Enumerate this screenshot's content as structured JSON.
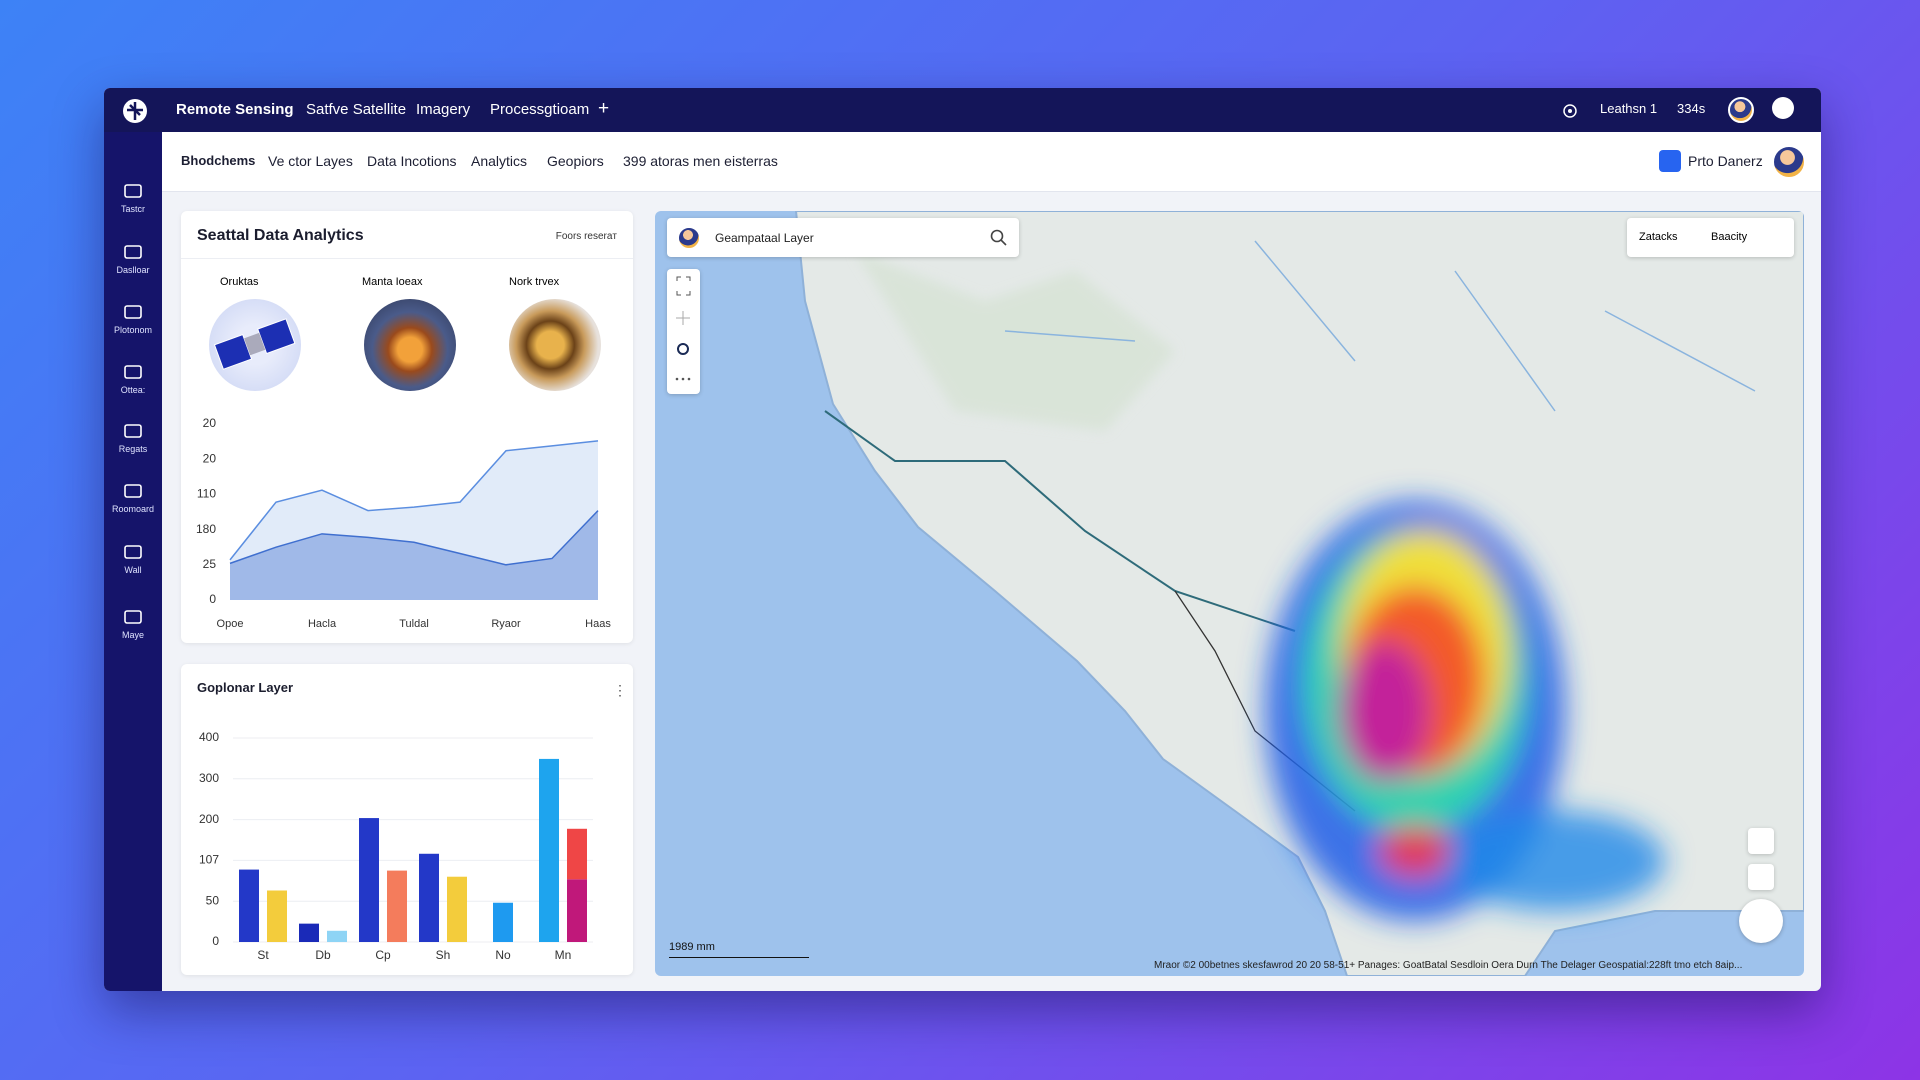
{
  "topbar": {
    "title": "Remote Sensing",
    "tabs": [
      "Satfve Satellite",
      "Imagery",
      "Processgtioam"
    ],
    "add": "+",
    "user": "Leathsn 1",
    "meta": "334s"
  },
  "toolbar": {
    "tabs": [
      "Bhodchems",
      "Ve ctor Layes",
      "Data Incotions",
      "Analytics",
      "Geopiors",
      "399 atoras men eisterras"
    ],
    "user": "Prto Danerz"
  },
  "sidebar": {
    "items": [
      "Tastcr",
      "Daslloar",
      "Plotonom",
      "Ottea:",
      "Regats",
      "Roomoard",
      "Wall",
      "Maye"
    ]
  },
  "analytics_panel": {
    "title": "Seattal Data Analytics",
    "action": "Foors reseraт",
    "thumbnails": [
      "Oruktas",
      "Manta Ioeax",
      "Nork trvex"
    ]
  },
  "bar_panel": {
    "title": "Goplonar Layer"
  },
  "map": {
    "search": "Geampataal Layer",
    "buttons": [
      "Zatacks",
      "Baacity"
    ],
    "scale": "1989 mm",
    "attribution": "Mraor ©2 00betnes skesfawrod 20 20 58-51+ Panages: GoatBatal Sesdloin Oera Durn The Delager Geospatial:228ft tmo etch 8aip..."
  },
  "chart_data": [
    {
      "type": "area",
      "categories": [
        "Opoe",
        null,
        "Hacla",
        null,
        "Tuldal",
        null,
        "Ryaor",
        null,
        "Haas"
      ],
      "series": [
        {
          "color": "#5b8ee0",
          "values": [
            57,
            139,
            156,
            127,
            132,
            139,
            212,
            219,
            226
          ]
        },
        {
          "color": "#3f6fcf",
          "values": [
            52,
            75,
            94,
            89,
            82,
            66,
            50,
            59,
            127
          ]
        }
      ],
      "ylim": [
        0,
        250
      ],
      "yticks": [
        0,
        {
          "value": 50,
          "label": "25"
        },
        {
          "value": 100,
          "label": "180"
        },
        {
          "value": 150,
          "label": "110"
        },
        {
          "value": 200,
          "label": "20"
        },
        {
          "value": 250,
          "label": "20"
        }
      ],
      "grid": false
    },
    {
      "type": "bar",
      "categories": [
        "St",
        "Db",
        "Cp",
        "Sh",
        "No",
        "Mn"
      ],
      "series": [
        {
          "colors": [
            "#2338c8",
            "#1a2ab8",
            "#2338c8",
            "#2338c8",
            "#1e9af0",
            "#1ea4ee"
          ],
          "values": [
            142,
            36,
            243,
            173,
            77,
            359
          ]
        },
        {
          "colors": [
            "#f3cc3c",
            "#8ed4f5",
            "#f47c5c",
            "#f3cc3c",
            null,
            "#c0187a"
          ],
          "values": [
            101,
            22,
            140,
            128,
            null,
            123
          ]
        },
        {
          "color": "#ef4646",
          "values": [
            null,
            null,
            null,
            null,
            null,
            99
          ],
          "stacked_on": 1
        }
      ],
      "ylim": [
        0,
        400
      ],
      "yticks": [
        0,
        {
          "value": 80,
          "label": "50"
        },
        {
          "value": 160,
          "label": "107"
        },
        {
          "value": 240,
          "label": "200"
        },
        {
          "value": 320,
          "label": "300"
        },
        400
      ],
      "grid": true
    }
  ]
}
